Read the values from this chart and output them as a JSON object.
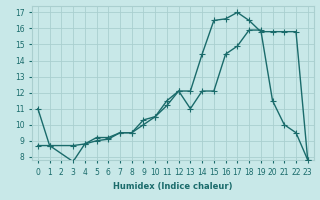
{
  "xlabel": "Humidex (Indice chaleur)",
  "bg_color": "#c8e8e8",
  "line_color": "#1a6b6b",
  "grid_color": "#aacfcf",
  "xlim": [
    -0.5,
    23.5
  ],
  "ylim": [
    7.8,
    17.4
  ],
  "yticks": [
    8,
    9,
    10,
    11,
    12,
    13,
    14,
    15,
    16,
    17
  ],
  "xticks": [
    0,
    1,
    2,
    3,
    4,
    5,
    6,
    7,
    8,
    9,
    10,
    11,
    12,
    13,
    14,
    15,
    16,
    17,
    18,
    19,
    20,
    21,
    22,
    23
  ],
  "line1_x": [
    0,
    1,
    3,
    4,
    5,
    6,
    7,
    8,
    9,
    10,
    11,
    12,
    13,
    14,
    15,
    16,
    17,
    18,
    19,
    20,
    21,
    22,
    23
  ],
  "line1_y": [
    11.0,
    8.7,
    8.7,
    8.8,
    9.2,
    9.2,
    9.5,
    9.5,
    10.3,
    10.5,
    11.5,
    12.1,
    12.1,
    14.4,
    16.5,
    16.6,
    17.0,
    16.5,
    15.8,
    15.8,
    15.8,
    15.8,
    7.8
  ],
  "line2_x": [
    0,
    1,
    3,
    4,
    5,
    6,
    7,
    8,
    9,
    10,
    11,
    12,
    13,
    14,
    15,
    16,
    17,
    18,
    19,
    20,
    21,
    22,
    23
  ],
  "line2_y": [
    8.7,
    8.7,
    7.7,
    8.8,
    9.0,
    9.1,
    9.5,
    9.5,
    10.0,
    10.5,
    11.2,
    12.1,
    11.0,
    12.1,
    12.1,
    14.4,
    14.9,
    15.9,
    15.9,
    11.5,
    10.0,
    9.5,
    7.8
  ],
  "marker": "+",
  "markersize": 4,
  "linewidth": 1.0,
  "xlabel_fontsize": 6.0,
  "tick_fontsize": 5.5
}
